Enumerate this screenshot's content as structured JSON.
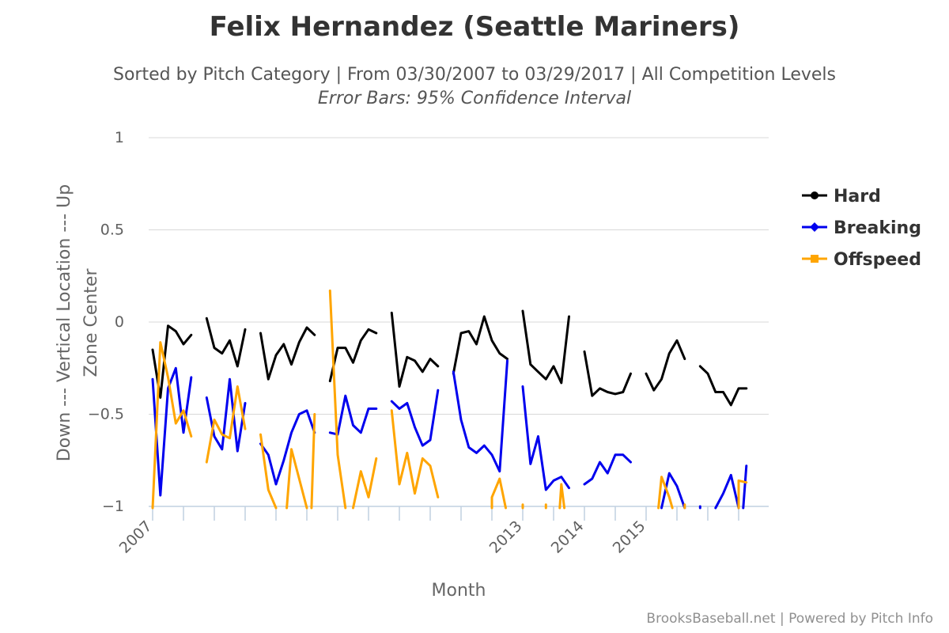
{
  "page": {
    "title": "Felix Hernandez (Seattle Mariners)",
    "subtitle": "Sorted by Pitch Category | From 03/30/2007 to 03/29/2017 | All Competition Levels",
    "subtitle2": "Error Bars: 95% Confidence Interval",
    "credit": "BrooksBaseball.net | Powered by Pitch Info"
  },
  "chart_data": {
    "type": "line",
    "title": "Felix Hernandez (Seattle Mariners)",
    "xlabel": "Month",
    "ylabel_line1": "Down --- Vertical Location --- Up",
    "ylabel_line2": "Zone Center",
    "ylim": [
      -1,
      1
    ],
    "yticks": [
      {
        "value": 1,
        "label": "1"
      },
      {
        "value": 0.5,
        "label": "0.5"
      },
      {
        "value": 0,
        "label": "0"
      },
      {
        "value": -0.5,
        "label": "−0.5"
      },
      {
        "value": -1,
        "label": "−1"
      }
    ],
    "x_ticks": [
      1,
      3,
      5,
      7,
      9,
      11,
      13,
      15,
      17,
      19,
      21,
      23,
      25,
      27,
      29,
      31,
      33,
      35,
      37,
      39
    ],
    "x_tick_labels": [
      {
        "index": 1,
        "label": "2007"
      },
      {
        "index": 25,
        "label": "2013"
      },
      {
        "index": 29,
        "label": "2014"
      },
      {
        "index": 33,
        "label": "2015"
      }
    ],
    "xlim": [
      0.0,
      39.7
    ],
    "grid": true,
    "legend_position": "right",
    "series": [
      {
        "name": "Hard",
        "color": "#000000",
        "marker": "circle",
        "segments": [
          [
            [
              1.0,
              -0.15
            ],
            [
              1.5,
              -0.41
            ],
            [
              2.0,
              -0.02
            ],
            [
              2.5,
              -0.05
            ],
            [
              3.0,
              -0.12
            ],
            [
              3.5,
              -0.07
            ]
          ],
          [
            [
              4.5,
              0.02
            ],
            [
              5.0,
              -0.14
            ],
            [
              5.5,
              -0.17
            ],
            [
              6.0,
              -0.1
            ],
            [
              6.5,
              -0.24
            ],
            [
              7.0,
              -0.04
            ]
          ],
          [
            [
              8.0,
              -0.06
            ],
            [
              8.5,
              -0.31
            ],
            [
              9.0,
              -0.18
            ],
            [
              9.5,
              -0.12
            ],
            [
              10.0,
              -0.23
            ],
            [
              10.5,
              -0.11
            ],
            [
              11.0,
              -0.03
            ],
            [
              11.5,
              -0.07
            ]
          ],
          [
            [
              12.5,
              -0.32
            ],
            [
              13.0,
              -0.14
            ],
            [
              13.5,
              -0.14
            ],
            [
              14.0,
              -0.22
            ],
            [
              14.5,
              -0.1
            ],
            [
              15.0,
              -0.04
            ],
            [
              15.5,
              -0.06
            ]
          ],
          [
            [
              16.5,
              0.05
            ],
            [
              17.0,
              -0.35
            ],
            [
              17.5,
              -0.19
            ],
            [
              18.0,
              -0.21
            ],
            [
              18.5,
              -0.27
            ],
            [
              19.0,
              -0.2
            ],
            [
              19.5,
              -0.24
            ]
          ],
          [
            [
              20.5,
              -0.28
            ],
            [
              21.0,
              -0.06
            ],
            [
              21.5,
              -0.05
            ],
            [
              22.0,
              -0.12
            ],
            [
              22.5,
              0.03
            ],
            [
              23.0,
              -0.1
            ],
            [
              23.5,
              -0.17
            ],
            [
              24.0,
              -0.2
            ]
          ],
          [
            [
              25.0,
              0.06
            ],
            [
              25.5,
              -0.23
            ],
            [
              26.0,
              -0.27
            ],
            [
              26.5,
              -0.31
            ],
            [
              27.0,
              -0.24
            ],
            [
              27.5,
              -0.33
            ],
            [
              28.0,
              0.03
            ]
          ],
          [
            [
              29.0,
              -0.16
            ],
            [
              29.5,
              -0.4
            ],
            [
              30.0,
              -0.36
            ],
            [
              30.5,
              -0.38
            ],
            [
              31.0,
              -0.39
            ],
            [
              31.5,
              -0.38
            ],
            [
              32.0,
              -0.28
            ]
          ],
          [
            [
              33.0,
              -0.28
            ],
            [
              33.5,
              -0.37
            ],
            [
              34.0,
              -0.31
            ],
            [
              34.5,
              -0.17
            ],
            [
              35.0,
              -0.1
            ],
            [
              35.5,
              -0.2
            ]
          ],
          [
            [
              36.5,
              -0.24
            ],
            [
              37.0,
              -0.28
            ],
            [
              37.5,
              -0.38
            ],
            [
              38.0,
              -0.38
            ],
            [
              38.5,
              -0.45
            ],
            [
              39.0,
              -0.36
            ],
            [
              39.5,
              -0.36
            ]
          ]
        ]
      },
      {
        "name": "Breaking",
        "color": "#0000ee",
        "marker": "diamond",
        "segments": [
          [
            [
              1.0,
              -0.31
            ],
            [
              1.5,
              -0.94
            ],
            [
              2.0,
              -0.36
            ],
            [
              2.5,
              -0.25
            ],
            [
              3.0,
              -0.6
            ],
            [
              3.5,
              -0.3
            ]
          ],
          [
            [
              4.5,
              -0.41
            ],
            [
              5.0,
              -0.62
            ],
            [
              5.5,
              -0.69
            ],
            [
              6.0,
              -0.31
            ],
            [
              6.5,
              -0.7
            ],
            [
              7.0,
              -0.44
            ]
          ],
          [
            [
              8.0,
              -0.66
            ],
            [
              8.5,
              -0.72
            ],
            [
              9.0,
              -0.88
            ],
            [
              9.5,
              -0.75
            ],
            [
              10.0,
              -0.6
            ],
            [
              10.5,
              -0.5
            ],
            [
              11.0,
              -0.48
            ],
            [
              11.5,
              -0.6
            ]
          ],
          [
            [
              12.5,
              -0.6
            ],
            [
              13.0,
              -0.61
            ],
            [
              13.5,
              -0.4
            ],
            [
              14.0,
              -0.56
            ],
            [
              14.5,
              -0.6
            ],
            [
              15.0,
              -0.47
            ],
            [
              15.5,
              -0.47
            ]
          ],
          [
            [
              16.5,
              -0.43
            ],
            [
              17.0,
              -0.47
            ],
            [
              17.5,
              -0.44
            ],
            [
              18.0,
              -0.57
            ],
            [
              18.5,
              -0.67
            ],
            [
              19.0,
              -0.64
            ],
            [
              19.5,
              -0.37
            ]
          ],
          [
            [
              20.5,
              -0.27
            ],
            [
              21.0,
              -0.53
            ],
            [
              21.5,
              -0.68
            ],
            [
              22.0,
              -0.71
            ],
            [
              22.5,
              -0.67
            ],
            [
              23.0,
              -0.72
            ],
            [
              23.5,
              -0.81
            ],
            [
              24.0,
              -0.21
            ]
          ],
          [
            [
              25.0,
              -0.35
            ],
            [
              25.5,
              -0.77
            ],
            [
              26.0,
              -0.62
            ],
            [
              26.5,
              -0.91
            ],
            [
              27.0,
              -0.86
            ],
            [
              27.5,
              -0.84
            ],
            [
              28.0,
              -0.9
            ]
          ],
          [
            [
              29.0,
              -0.88
            ],
            [
              29.5,
              -0.85
            ],
            [
              30.0,
              -0.76
            ],
            [
              30.5,
              -0.82
            ],
            [
              31.0,
              -0.72
            ],
            [
              31.5,
              -0.72
            ],
            [
              32.0,
              -0.76
            ]
          ],
          [
            [
              34.0,
              -1.02
            ],
            [
              34.5,
              -0.82
            ],
            [
              35.0,
              -0.89
            ],
            [
              35.5,
              -1.02
            ]
          ],
          [
            [
              36.5,
              -1.0
            ],
            [
              36.5,
              -1.02
            ]
          ],
          [
            [
              37.5,
              -1.02
            ],
            [
              38.0,
              -0.93
            ],
            [
              38.5,
              -0.83
            ],
            [
              39.0,
              -1.02
            ]
          ],
          [
            [
              39.3,
              -1.02
            ],
            [
              39.5,
              -0.78
            ]
          ]
        ]
      },
      {
        "name": "Offspeed",
        "color": "#ffa500",
        "marker": "square",
        "segments": [
          [
            [
              1.0,
              -1.02
            ],
            [
              1.5,
              -0.11
            ],
            [
              2.0,
              -0.3
            ],
            [
              2.5,
              -0.55
            ],
            [
              3.0,
              -0.48
            ],
            [
              3.5,
              -0.62
            ]
          ],
          [
            [
              4.5,
              -0.76
            ],
            [
              5.0,
              -0.53
            ],
            [
              5.5,
              -0.61
            ],
            [
              6.0,
              -0.63
            ],
            [
              6.5,
              -0.35
            ],
            [
              7.0,
              -0.58
            ]
          ],
          [
            [
              8.0,
              -0.61
            ],
            [
              8.5,
              -0.91
            ],
            [
              9.0,
              -1.02
            ]
          ],
          [
            [
              9.7,
              -1.02
            ],
            [
              10.0,
              -0.69
            ],
            [
              10.5,
              -0.85
            ],
            [
              11.0,
              -1.02
            ]
          ],
          [
            [
              11.3,
              -1.02
            ],
            [
              11.5,
              -0.5
            ]
          ],
          [
            [
              12.5,
              0.17
            ],
            [
              13.0,
              -0.72
            ],
            [
              13.5,
              -1.02
            ]
          ],
          [
            [
              14.0,
              -1.02
            ],
            [
              14.5,
              -0.81
            ],
            [
              15.0,
              -0.95
            ],
            [
              15.5,
              -0.74
            ]
          ],
          [
            [
              16.5,
              -0.48
            ],
            [
              17.0,
              -0.88
            ],
            [
              17.5,
              -0.71
            ],
            [
              18.0,
              -0.93
            ],
            [
              18.5,
              -0.74
            ],
            [
              19.0,
              -0.78
            ],
            [
              19.5,
              -0.95
            ]
          ],
          [
            [
              23.0,
              -1.02
            ],
            [
              23.0,
              -0.95
            ],
            [
              23.5,
              -0.85
            ],
            [
              23.9,
              -1.02
            ]
          ],
          [
            [
              25.0,
              -0.99
            ],
            [
              25.0,
              -1.02
            ]
          ],
          [
            [
              26.5,
              -0.99
            ],
            [
              26.5,
              -1.02
            ]
          ],
          [
            [
              27.4,
              -1.02
            ],
            [
              27.5,
              -0.88
            ],
            [
              27.7,
              -1.02
            ]
          ],
          [
            [
              33.8,
              -1.02
            ],
            [
              34.0,
              -0.84
            ],
            [
              34.5,
              -0.95
            ],
            [
              34.7,
              -1.02
            ]
          ],
          [
            [
              35.5,
              -0.99
            ],
            [
              35.5,
              -1.02
            ]
          ],
          [
            [
              39.0,
              -1.02
            ],
            [
              39.0,
              -0.86
            ],
            [
              39.5,
              -0.87
            ]
          ]
        ]
      }
    ]
  }
}
